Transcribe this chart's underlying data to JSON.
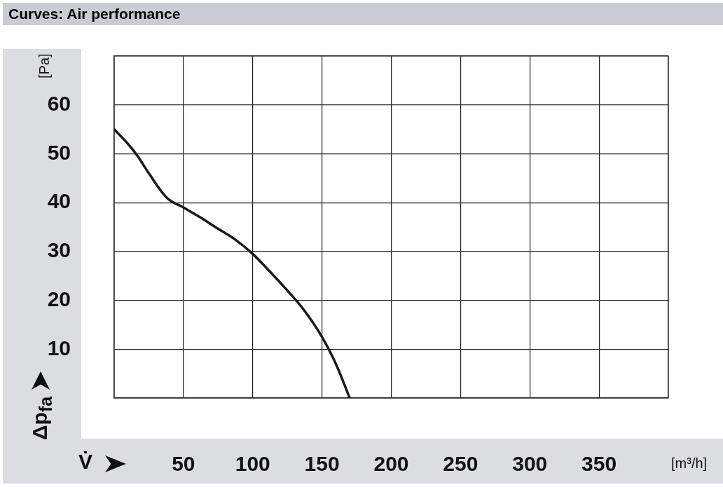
{
  "chart_data": {
    "type": "line",
    "title": "Curves: Air performance",
    "xlabel": "V̇",
    "ylabel": "Δp$_{fa}$",
    "annotations": [
      "[Pa]",
      "[m³/h]"
    ],
    "series": [
      {
        "color": "#1a1a1a",
        "x": [
          0,
          10,
          17,
          25,
          38,
          50,
          62,
          73,
          87,
          100,
          112,
          125,
          137,
          150,
          160,
          170
        ],
        "values": [
          55,
          52,
          49.5,
          46,
          41,
          39,
          37,
          35,
          32.5,
          29.5,
          26,
          22,
          18,
          12.5,
          7,
          0
        ]
      }
    ],
    "xlim": [
      0,
      400
    ],
    "xticks": [
      {
        "value": 0,
        "label": null
      },
      50,
      100,
      150,
      200,
      250,
      300,
      350,
      {
        "value": 400,
        "label": null
      }
    ],
    "ylim": [
      0,
      70
    ],
    "yticks": [
      {
        "value": 0,
        "label": null
      },
      10,
      20,
      30,
      40,
      50,
      60,
      {
        "value": 70,
        "label": null
      }
    ],
    "grid": true,
    "legend": false,
    "marker": "none",
    "line_style": "solid"
  }
}
